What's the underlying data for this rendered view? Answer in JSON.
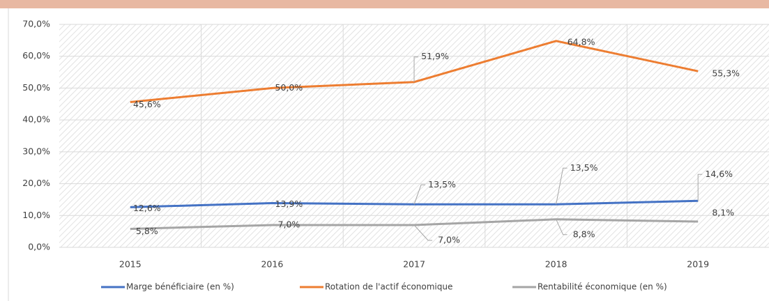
{
  "chart_data": {
    "type": "line",
    "categories": [
      "2015",
      "2016",
      "2017",
      "2018",
      "2019"
    ],
    "series": [
      {
        "name": "Marge bénéficiaire (en %)",
        "color": "#4472c4",
        "values": [
          12.6,
          13.9,
          13.5,
          13.5,
          14.6
        ],
        "value_labels": [
          "12,6%",
          "13,9%",
          "13,5%",
          "13,5%",
          "14,6%"
        ]
      },
      {
        "name": "Rotation de l'actif économique",
        "color": "#ed7d31",
        "values": [
          45.6,
          50.0,
          51.9,
          64.8,
          55.3
        ],
        "value_labels": [
          "45,6%",
          "50,0%",
          "51,9%",
          "64,8%",
          "55,3%"
        ]
      },
      {
        "name": "Rentabilité économique (en %)",
        "color": "#a5a5a5",
        "values": [
          5.8,
          7.0,
          7.0,
          8.8,
          8.1
        ],
        "value_labels": [
          "5,8%",
          "7,0%",
          "7,0%",
          "8,8%",
          "8,1%"
        ]
      }
    ],
    "ylim": [
      0,
      70
    ],
    "yticks": [
      {
        "value": 0,
        "label": "0,0%"
      },
      {
        "value": 10,
        "label": "10,0%"
      },
      {
        "value": 20,
        "label": "20,0%"
      },
      {
        "value": 30,
        "label": "30,0%"
      },
      {
        "value": 40,
        "label": "40,0%"
      },
      {
        "value": 50,
        "label": "50,0%"
      },
      {
        "value": 60,
        "label": "60,0%"
      },
      {
        "value": 70,
        "label": "70,0%"
      }
    ],
    "grid": true,
    "legend": "bottom"
  }
}
